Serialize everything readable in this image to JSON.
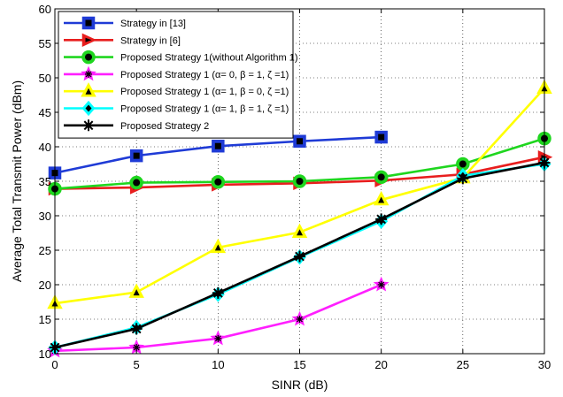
{
  "chart_data": {
    "type": "line",
    "xlabel": "SINR (dB)",
    "ylabel": "Average Total Transmit Power (dBm)",
    "xlim": [
      0,
      30
    ],
    "ylim": [
      10,
      60
    ],
    "xticks": [
      0,
      5,
      10,
      15,
      20,
      25,
      30
    ],
    "yticks": [
      10,
      15,
      20,
      25,
      30,
      35,
      40,
      45,
      50,
      55,
      60
    ],
    "grid": true,
    "legend_position": "top-left",
    "series": [
      {
        "name": "Strategy in [13]",
        "color": "#1f3bd6",
        "marker": "square",
        "x": [
          0,
          5,
          10,
          15,
          20
        ],
        "y": [
          36.2,
          38.7,
          40.1,
          40.8,
          41.4
        ]
      },
      {
        "name": "Strategy in [6]",
        "color": "#e81e1e",
        "marker": "triangle-right",
        "x": [
          0,
          5,
          10,
          15,
          20,
          25,
          30
        ],
        "y": [
          33.9,
          34.1,
          34.5,
          34.7,
          35.1,
          36.0,
          38.5
        ]
      },
      {
        "name": "Proposed Strategy 1(without Algorithm 1)",
        "color": "#1fd61f",
        "marker": "circle",
        "x": [
          0,
          5,
          10,
          15,
          20,
          25,
          30
        ],
        "y": [
          33.9,
          34.8,
          34.9,
          35.0,
          35.6,
          37.5,
          41.2
        ]
      },
      {
        "name": "Proposed Strategy 1 (α= 0, β = 1, ζ =1)",
        "color": "#ff1fff",
        "marker": "star",
        "x": [
          0,
          5,
          10,
          15,
          20
        ],
        "y": [
          10.4,
          10.9,
          12.2,
          15.0,
          20.0
        ]
      },
      {
        "name": "Proposed Strategy 1 (α= 1, β = 0, ζ =1)",
        "color": "#ffff00",
        "marker": "triangle-up",
        "x": [
          0,
          5,
          10,
          15,
          20,
          25,
          30
        ],
        "y": [
          17.3,
          18.9,
          25.4,
          27.6,
          32.3,
          35.5,
          48.5
        ]
      },
      {
        "name": "Proposed Strategy 1 (α= 1, β = 1, ζ =1)",
        "color": "#00ffff",
        "marker": "diamond",
        "x": [
          0,
          5,
          10,
          15,
          20,
          25,
          30
        ],
        "y": [
          10.9,
          13.8,
          18.6,
          24.0,
          29.2,
          35.8,
          37.5
        ]
      },
      {
        "name": "Proposed Strategy 2",
        "color": "#000000",
        "marker": "asterisk",
        "x": [
          0,
          5,
          10,
          15,
          20,
          25,
          30
        ],
        "y": [
          10.9,
          13.6,
          18.8,
          24.1,
          29.5,
          35.4,
          37.7
        ]
      }
    ]
  }
}
